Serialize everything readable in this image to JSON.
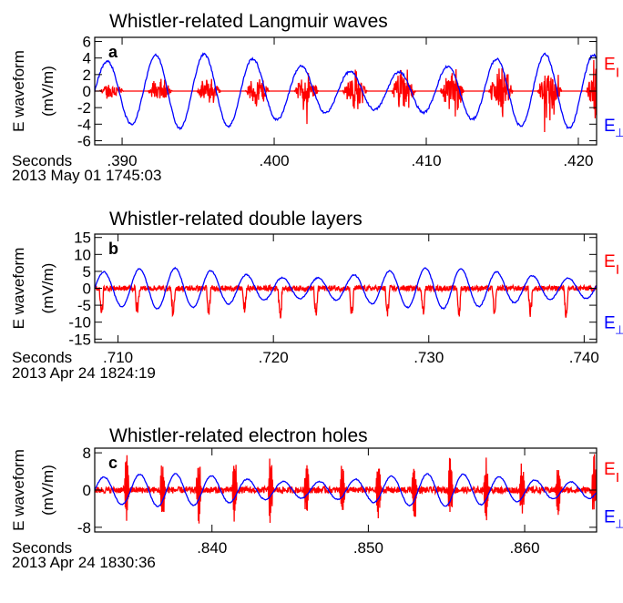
{
  "colors": {
    "parallel": "#ff0000",
    "perp": "#0000ff",
    "axis": "#000000"
  },
  "chart_data": [
    {
      "type": "line",
      "panel_label": "a",
      "title": "Whistler-related Langmuir waves",
      "ylabel_line1": "E waveform",
      "ylabel_line2": "(mV/m)",
      "yticks": [
        "-6",
        "-4",
        "-2",
        "0",
        "2",
        "4",
        "6"
      ],
      "ytick_values": [
        -6,
        -4,
        -2,
        0,
        2,
        4,
        6
      ],
      "ylim": [
        -6.5,
        6.5
      ],
      "xlim": [
        0.3882,
        0.4212
      ],
      "xticks": [
        ".390",
        ".400",
        ".410",
        ".420"
      ],
      "xtick_values": [
        0.39,
        0.4,
        0.41,
        0.42
      ],
      "x_prefix": "Seconds",
      "date_label": "2013 May 01 1745:03",
      "legend": {
        "parallel_symbol": "E",
        "parallel_sub": "||",
        "perp_symbol": "E",
        "perp_sub": "⊥"
      },
      "series": [
        {
          "name": "E∥",
          "color": "#ff0000",
          "shape": "langmuir",
          "amplitude": 2.5,
          "freq_scale": 1.0
        },
        {
          "name": "E⊥",
          "color": "#0000ff",
          "shape": "sine",
          "amplitude": 4.5,
          "period": 0.0032
        }
      ]
    },
    {
      "type": "line",
      "panel_label": "b",
      "title": "Whistler-related double layers",
      "ylabel_line1": "E waveform",
      "ylabel_line2": "(mV/m)",
      "yticks": [
        "-15",
        "-10",
        "-5",
        "0",
        "5",
        "10",
        "15"
      ],
      "ytick_values": [
        -15,
        -10,
        -5,
        0,
        5,
        10,
        15
      ],
      "ylim": [
        -16,
        16
      ],
      "xlim": [
        0.7085,
        0.7408
      ],
      "xticks": [
        ".710",
        ".720",
        ".730",
        ".740"
      ],
      "xtick_values": [
        0.71,
        0.72,
        0.73,
        0.74
      ],
      "x_prefix": "Seconds",
      "date_label": "2013 Apr 24 1824:19",
      "legend": {
        "parallel_symbol": "E",
        "parallel_sub": "||",
        "perp_symbol": "E",
        "perp_sub": "⊥"
      },
      "series": [
        {
          "name": "E∥",
          "color": "#ff0000",
          "shape": "spikes_neg",
          "amplitude": 8
        },
        {
          "name": "E⊥",
          "color": "#0000ff",
          "shape": "sine",
          "amplitude": 6,
          "period": 0.0023
        }
      ]
    },
    {
      "type": "line",
      "panel_label": "c",
      "title": "Whistler-related electron holes",
      "ylabel_line1": "E waveform",
      "ylabel_line2": "(mV/m)",
      "yticks": [
        "-8",
        "0",
        "8"
      ],
      "ytick_values": [
        -8,
        0,
        8
      ],
      "ylim": [
        -9,
        9
      ],
      "xlim": [
        0.8325,
        0.8646
      ],
      "xticks": [
        ".840",
        ".850",
        ".860"
      ],
      "xtick_values": [
        0.84,
        0.85,
        0.86
      ],
      "x_prefix": "Seconds",
      "date_label": "2013 Apr 24 1830:36",
      "legend": {
        "parallel_symbol": "E",
        "parallel_sub": "||",
        "perp_symbol": "E",
        "perp_sub": "⊥"
      },
      "series": [
        {
          "name": "E∥",
          "color": "#ff0000",
          "shape": "bipolar_spikes",
          "amplitude": 6
        },
        {
          "name": "E⊥",
          "color": "#0000ff",
          "shape": "sine",
          "amplitude": 3.5,
          "period": 0.0023
        }
      ]
    }
  ]
}
